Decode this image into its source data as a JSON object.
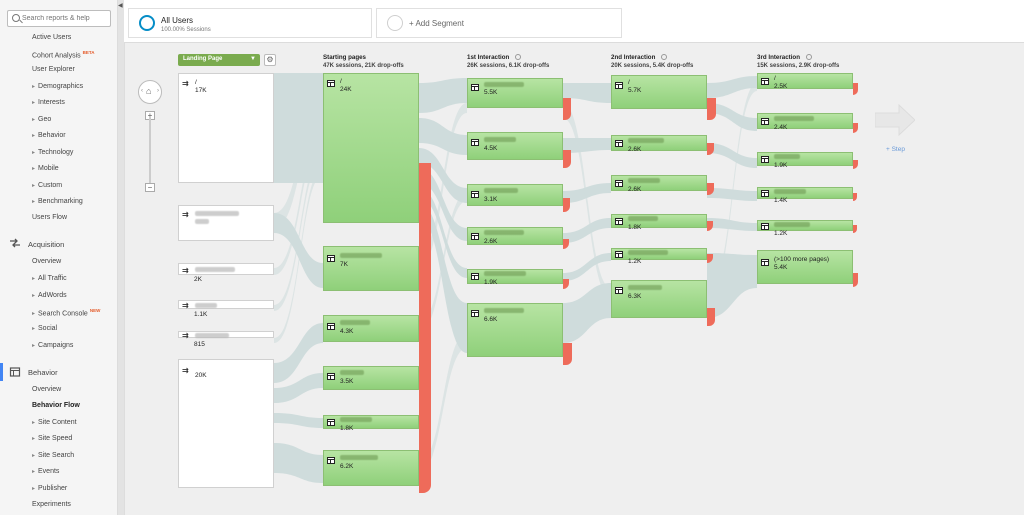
{
  "sidebar": {
    "search_placeholder": "Search reports & help",
    "audience_items": [
      {
        "label": "Active Users",
        "arrow": false
      },
      {
        "label": "Cohort Analysis",
        "arrow": false,
        "badge": "BETA"
      },
      {
        "label": "User Explorer",
        "arrow": false
      },
      {
        "label": "Demographics",
        "arrow": true
      },
      {
        "label": "Interests",
        "arrow": true
      },
      {
        "label": "Geo",
        "arrow": true
      },
      {
        "label": "Behavior",
        "arrow": true
      },
      {
        "label": "Technology",
        "arrow": true
      },
      {
        "label": "Mobile",
        "arrow": true
      },
      {
        "label": "Custom",
        "arrow": true
      },
      {
        "label": "Benchmarking",
        "arrow": true
      },
      {
        "label": "Users Flow",
        "arrow": false
      }
    ],
    "acquisition": {
      "title": "Acquisition",
      "items": [
        {
          "label": "Overview",
          "arrow": false
        },
        {
          "label": "All Traffic",
          "arrow": true
        },
        {
          "label": "AdWords",
          "arrow": true
        },
        {
          "label": "Search Console",
          "arrow": true,
          "badge": "NEW"
        },
        {
          "label": "Social",
          "arrow": true
        },
        {
          "label": "Campaigns",
          "arrow": true
        }
      ]
    },
    "behavior": {
      "title": "Behavior",
      "items": [
        {
          "label": "Overview",
          "arrow": false
        },
        {
          "label": "Behavior Flow",
          "arrow": false,
          "active": true
        },
        {
          "label": "Site Content",
          "arrow": true
        },
        {
          "label": "Site Speed",
          "arrow": true
        },
        {
          "label": "Site Search",
          "arrow": true
        },
        {
          "label": "Events",
          "arrow": true
        },
        {
          "label": "Publisher",
          "arrow": true
        },
        {
          "label": "Experiments",
          "arrow": false
        }
      ]
    }
  },
  "segments": {
    "primary_title": "All Users",
    "primary_sub": "100.00% Sessions",
    "add_label": "+ Add Segment"
  },
  "flow": {
    "dimension_select": "Landing Page",
    "step_label": "+ Step",
    "columns": [
      {
        "title": "Starting pages",
        "summary": "47K sessions, 21K drop-offs"
      },
      {
        "title": "1st Interaction",
        "summary": "26K sessions, 6.1K drop-offs"
      },
      {
        "title": "2nd Interaction",
        "summary": "20K sessions, 5.4K drop-offs"
      },
      {
        "title": "3rd Interaction",
        "summary": "15K sessions, 2.9K drop-offs"
      }
    ],
    "landing_nodes": [
      {
        "name": "/",
        "value": "17K"
      },
      {
        "name": "",
        "value": "",
        "blurred": true
      },
      {
        "name": "",
        "value": "2K"
      },
      {
        "name": "",
        "value": "1.1K"
      },
      {
        "name": "",
        "value": "815"
      },
      {
        "name": "",
        "value": "20K"
      }
    ],
    "starting_nodes": [
      {
        "name": "/",
        "value": "24K"
      },
      {
        "name": "",
        "value": "7K"
      },
      {
        "name": "",
        "value": "4.3K"
      },
      {
        "name": "",
        "value": "3.5K"
      },
      {
        "name": "",
        "value": "1.8K"
      },
      {
        "name": "",
        "value": "6.2K"
      }
    ],
    "first_nodes": [
      {
        "name": "",
        "value": "5.5K"
      },
      {
        "name": "",
        "value": "4.5K"
      },
      {
        "name": "",
        "value": "3.1K"
      },
      {
        "name": "",
        "value": "2.6K"
      },
      {
        "name": "",
        "value": "1.9K"
      },
      {
        "name": "",
        "value": "6.6K"
      }
    ],
    "second_nodes": [
      {
        "name": "/",
        "value": "5.7K"
      },
      {
        "name": "",
        "value": "2.6K"
      },
      {
        "name": "",
        "value": "2.6K"
      },
      {
        "name": "",
        "value": "1.8K"
      },
      {
        "name": "",
        "value": "1.2K"
      },
      {
        "name": "",
        "value": "6.3K"
      }
    ],
    "third_nodes": [
      {
        "name": "/",
        "value": "2.5K"
      },
      {
        "name": "",
        "value": "2.4K"
      },
      {
        "name": "",
        "value": "1.9K"
      },
      {
        "name": "",
        "value": "1.4K"
      },
      {
        "name": "",
        "value": "1.2K"
      },
      {
        "name": "(>100 more pages)",
        "value": "5.4K"
      }
    ]
  }
}
